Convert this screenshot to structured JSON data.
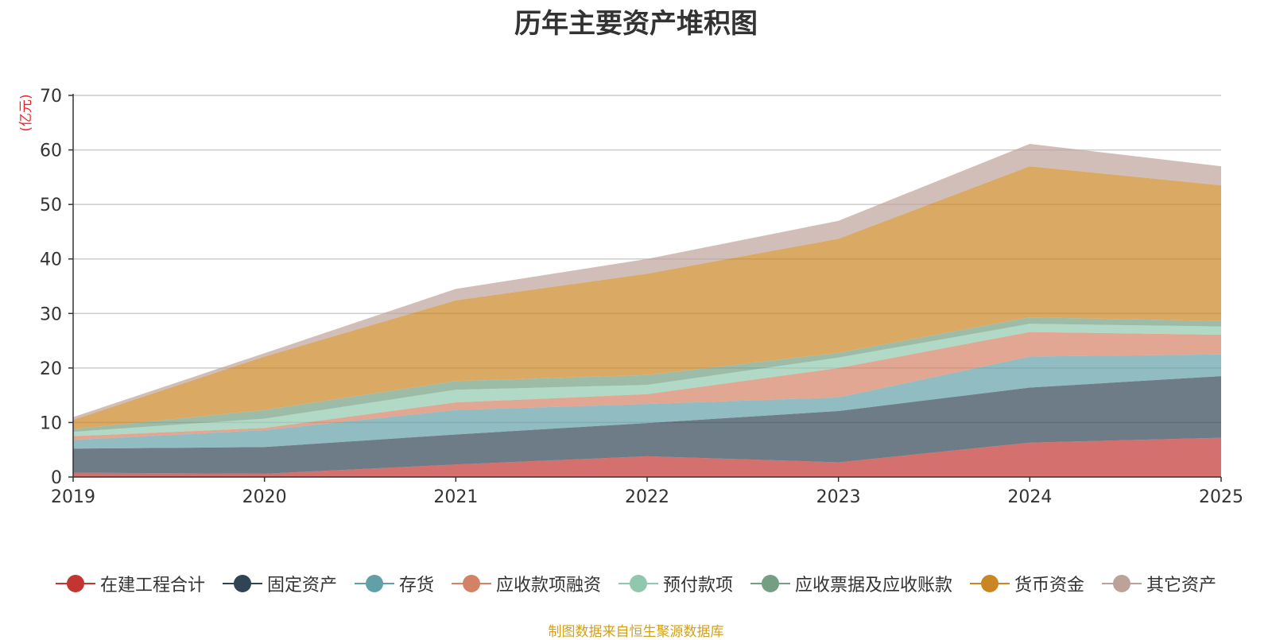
{
  "chart_data": {
    "type": "area",
    "stacked": true,
    "title": "历年主要资产堆积图",
    "ylabel": "(亿元)",
    "xlabel": "",
    "x": [
      "2019",
      "2020",
      "2021",
      "2022",
      "2023",
      "2024",
      "2025"
    ],
    "ylim": [
      0,
      70
    ],
    "yticks": [
      0,
      10,
      20,
      30,
      40,
      50,
      60,
      70
    ],
    "grid": true,
    "legend_position": "bottom",
    "series": [
      {
        "name": "在建工程合计",
        "color": "#c23531",
        "values": [
          0.8,
          0.6,
          2.3,
          3.8,
          2.7,
          6.3,
          7.2
        ]
      },
      {
        "name": "固定资产",
        "color": "#2f4554",
        "values": [
          4.4,
          4.9,
          5.5,
          6.1,
          9.4,
          10.1,
          11.3
        ]
      },
      {
        "name": "存货",
        "color": "#61a0a8",
        "values": [
          1.6,
          3.1,
          4.5,
          3.5,
          2.5,
          5.7,
          4.0
        ]
      },
      {
        "name": "应收款项融资",
        "color": "#d48265",
        "values": [
          0.7,
          0.4,
          1.4,
          1.8,
          5.4,
          4.5,
          3.6
        ]
      },
      {
        "name": "预付款项",
        "color": "#91c7ae",
        "values": [
          0.8,
          1.7,
          2.3,
          1.7,
          1.9,
          1.5,
          1.5
        ]
      },
      {
        "name": "应收票据及应收账款",
        "color": "#749f83",
        "values": [
          0.5,
          1.6,
          1.6,
          1.8,
          0.9,
          1.2,
          1.0
        ]
      },
      {
        "name": "货币资金",
        "color": "#ca8622",
        "values": [
          1.7,
          9.8,
          14.8,
          18.6,
          20.9,
          27.7,
          24.9
        ]
      },
      {
        "name": "其它资产",
        "color": "#bda29a",
        "values": [
          0.5,
          0.6,
          2.1,
          2.7,
          3.3,
          4.1,
          3.5
        ]
      }
    ]
  },
  "source_note": "制图数据来自恒生聚源数据库"
}
